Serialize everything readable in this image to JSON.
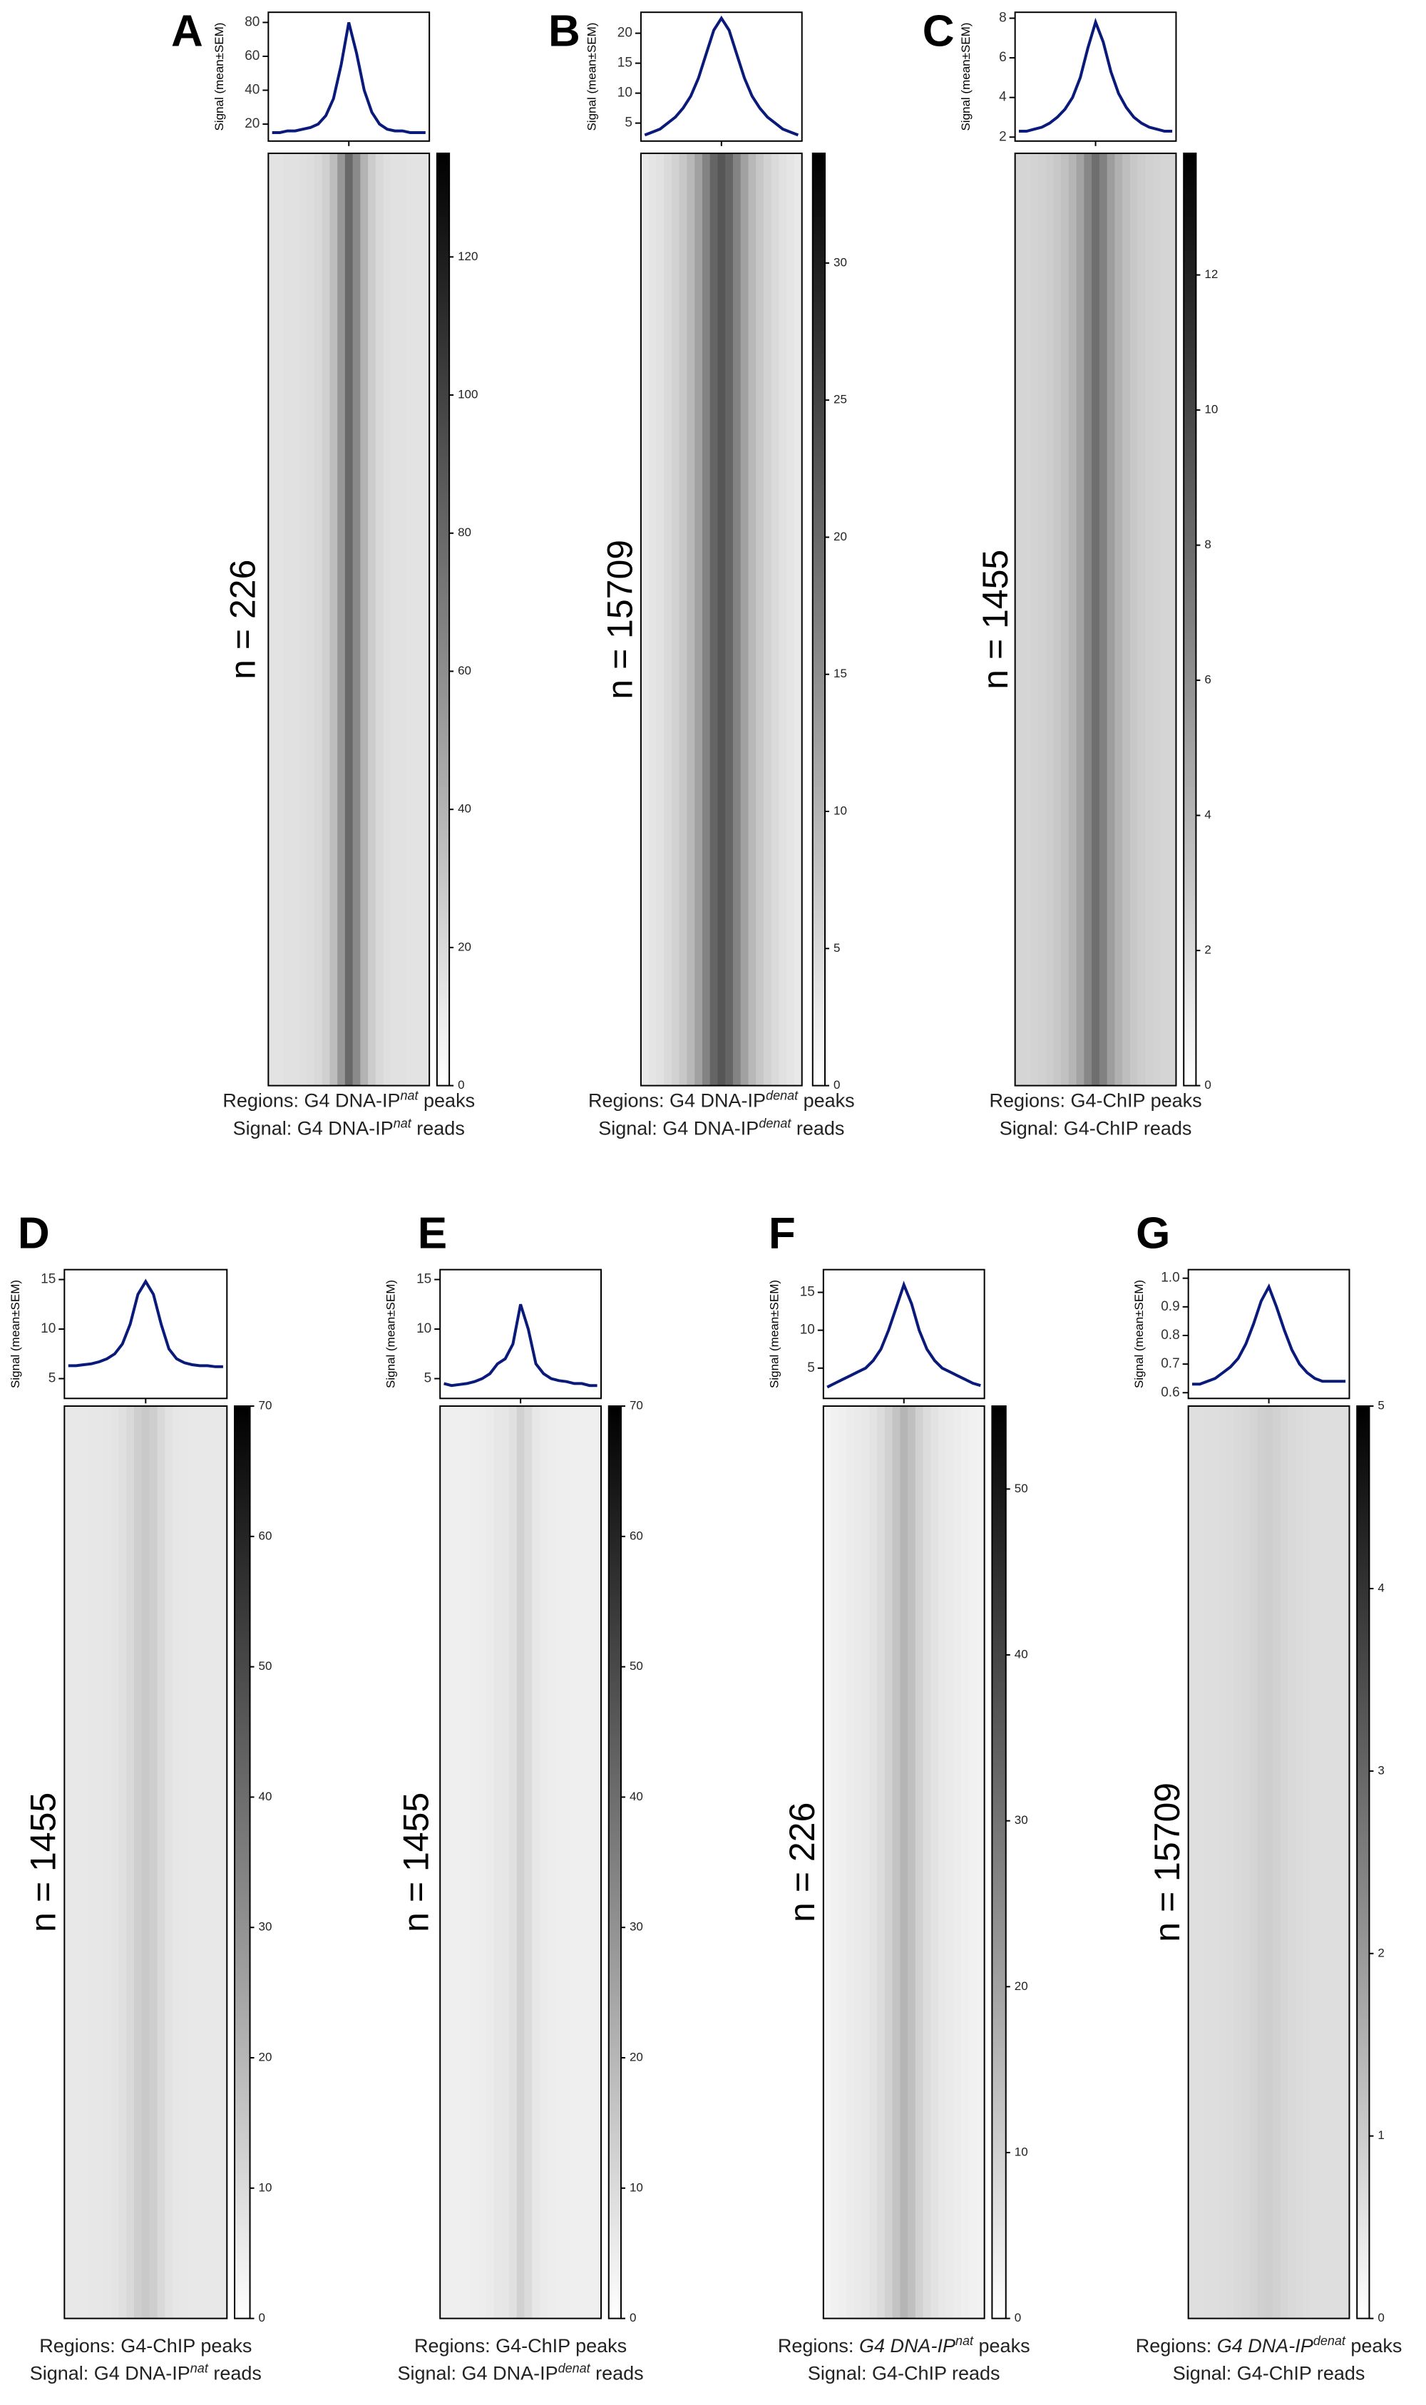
{
  "chart_data": [
    {
      "type": "heatmap",
      "panel": "A",
      "n_label": "n = 226",
      "ylabel": "Signal (mean±SEM)",
      "color": "#0a1a7a",
      "values": [
        15,
        15,
        16,
        16,
        17,
        18,
        20,
        25,
        35,
        55,
        80,
        62,
        40,
        27,
        20,
        17,
        16,
        16,
        15,
        15,
        15
      ],
      "ylim": [
        10,
        86
      ],
      "yticks": [
        20,
        40,
        60,
        80
      ],
      "colorbar_lim": [
        0,
        135
      ],
      "colorbar_ticks": [
        0,
        20,
        40,
        60,
        80,
        100,
        120
      ],
      "caption": [
        [
          {
            "text": "Regions: G4 DNA-IP"
          },
          {
            "text": "nat",
            "sup": true,
            "italic": true
          },
          {
            "text": " peaks"
          }
        ],
        [
          {
            "text": "Signal: G4 DNA-IP"
          },
          {
            "text": "nat",
            "sup": true,
            "italic": true
          },
          {
            "text": " reads"
          }
        ]
      ]
    },
    {
      "type": "heatmap",
      "panel": "B",
      "n_label": "n = 15709",
      "ylabel": "Signal (mean±SEM)",
      "color": "#0a1a7a",
      "values": [
        3,
        3.5,
        4,
        5,
        6,
        7.5,
        9.5,
        12.5,
        16.5,
        20.5,
        22.5,
        20.5,
        16.5,
        12.5,
        9.5,
        7.5,
        6,
        5,
        4,
        3.5,
        3
      ],
      "ylim": [
        2,
        23.5
      ],
      "yticks": [
        5,
        10,
        15,
        20
      ],
      "colorbar_lim": [
        0,
        34
      ],
      "colorbar_ticks": [
        0,
        5,
        10,
        15,
        20,
        25,
        30
      ],
      "caption": [
        [
          {
            "text": "Regions: G4 DNA-IP"
          },
          {
            "text": "denat",
            "sup": true,
            "italic": true
          },
          {
            "text": " peaks"
          }
        ],
        [
          {
            "text": "Signal: G4 DNA-IP"
          },
          {
            "text": "denat",
            "sup": true,
            "italic": true
          },
          {
            "text": " reads"
          }
        ]
      ]
    },
    {
      "type": "heatmap",
      "panel": "C",
      "n_label": "n = 1455",
      "ylabel": "Signal (mean±SEM)",
      "color": "#0a1a7a",
      "values": [
        2.3,
        2.3,
        2.4,
        2.5,
        2.7,
        3,
        3.4,
        4,
        5,
        6.5,
        7.8,
        6.8,
        5.3,
        4.2,
        3.5,
        3,
        2.7,
        2.5,
        2.4,
        2.3,
        2.3
      ],
      "ylim": [
        1.8,
        8.3
      ],
      "yticks": [
        2,
        4,
        6,
        8
      ],
      "colorbar_lim": [
        0,
        13.8
      ],
      "colorbar_ticks": [
        0,
        2,
        4,
        6,
        8,
        10,
        12
      ],
      "caption": [
        [
          {
            "text": "Regions: G4-ChIP peaks"
          }
        ],
        [
          {
            "text": "Signal: G4-ChIP reads"
          }
        ]
      ]
    },
    {
      "type": "heatmap",
      "panel": "D",
      "n_label": "n = 1455",
      "ylabel": "Signal (mean±SEM)",
      "color": "#0a1a7a",
      "values": [
        6.3,
        6.3,
        6.4,
        6.5,
        6.7,
        7,
        7.5,
        8.5,
        10.5,
        13.5,
        14.8,
        13.5,
        10.5,
        8,
        7,
        6.6,
        6.4,
        6.3,
        6.3,
        6.2,
        6.2
      ],
      "ylim": [
        3,
        16
      ],
      "yticks": [
        5,
        10,
        15
      ],
      "colorbar_lim": [
        0,
        70
      ],
      "colorbar_ticks": [
        0,
        10,
        20,
        30,
        40,
        50,
        60,
        70
      ],
      "caption": [
        [
          {
            "text": "Regions: G4-ChIP peaks"
          }
        ],
        [
          {
            "text": "Signal: G4 DNA-IP"
          },
          {
            "text": "nat",
            "sup": true,
            "italic": true
          },
          {
            "text": " reads"
          }
        ]
      ]
    },
    {
      "type": "heatmap",
      "panel": "E",
      "n_label": "n = 1455",
      "ylabel": "Signal (mean±SEM)",
      "color": "#0a1a7a",
      "values": [
        4.5,
        4.3,
        4.4,
        4.5,
        4.7,
        5,
        5.5,
        6.5,
        7,
        8.5,
        12.5,
        10,
        6.5,
        5.5,
        5,
        4.8,
        4.7,
        4.5,
        4.5,
        4.3,
        4.3
      ],
      "ylim": [
        3,
        16
      ],
      "yticks": [
        5,
        10,
        15
      ],
      "colorbar_lim": [
        0,
        70
      ],
      "colorbar_ticks": [
        0,
        10,
        20,
        30,
        40,
        50,
        60,
        70
      ],
      "caption": [
        [
          {
            "text": "Regions: G4-ChIP peaks"
          }
        ],
        [
          {
            "text": "Signal: G4 DNA-IP"
          },
          {
            "text": "denat",
            "sup": true,
            "italic": true
          },
          {
            "text": " reads"
          }
        ]
      ]
    },
    {
      "type": "heatmap",
      "panel": "F",
      "n_label": "n = 226",
      "ylabel": "Signal (mean±SEM)",
      "color": "#0a1a7a",
      "values": [
        2.5,
        3,
        3.5,
        4,
        4.5,
        5,
        6,
        7.5,
        10,
        13,
        16,
        13.5,
        10,
        7.5,
        6,
        5,
        4.5,
        4,
        3.5,
        3,
        2.7
      ],
      "ylim": [
        1,
        18
      ],
      "yticks": [
        5,
        10,
        15
      ],
      "colorbar_lim": [
        0,
        55
      ],
      "colorbar_ticks": [
        0,
        10,
        20,
        30,
        40,
        50
      ],
      "caption": [
        [
          {
            "text": "Regions: "
          },
          {
            "text": "G4 DNA-IP",
            "italic": true
          },
          {
            "text": "nat",
            "sup": true,
            "italic": true
          },
          {
            "text": " peaks"
          }
        ],
        [
          {
            "text": "Signal: G4-ChIP reads"
          }
        ]
      ]
    },
    {
      "type": "heatmap",
      "panel": "G",
      "n_label": "n = 15709",
      "ylabel": "Signal (mean±SEM)",
      "color": "#0a1a7a",
      "values": [
        0.63,
        0.63,
        0.64,
        0.65,
        0.67,
        0.69,
        0.72,
        0.77,
        0.84,
        0.92,
        0.97,
        0.9,
        0.82,
        0.75,
        0.7,
        0.67,
        0.65,
        0.64,
        0.64,
        0.64,
        0.64
      ],
      "ylim": [
        0.58,
        1.03
      ],
      "yticks": [
        0.6,
        0.7,
        0.8,
        0.9,
        {
          "value": 1,
          "label": "1.0"
        }
      ],
      "colorbar_lim": [
        0,
        5
      ],
      "colorbar_ticks": [
        0,
        1,
        2,
        3,
        4,
        5
      ],
      "caption": [
        [
          {
            "text": "Regions: "
          },
          {
            "text": "G4 DNA-IP",
            "italic": true
          },
          {
            "text": "denat",
            "sup": true,
            "italic": true
          },
          {
            "text": " peaks"
          }
        ],
        [
          {
            "text": "Signal: G4-ChIP reads"
          }
        ]
      ]
    }
  ]
}
